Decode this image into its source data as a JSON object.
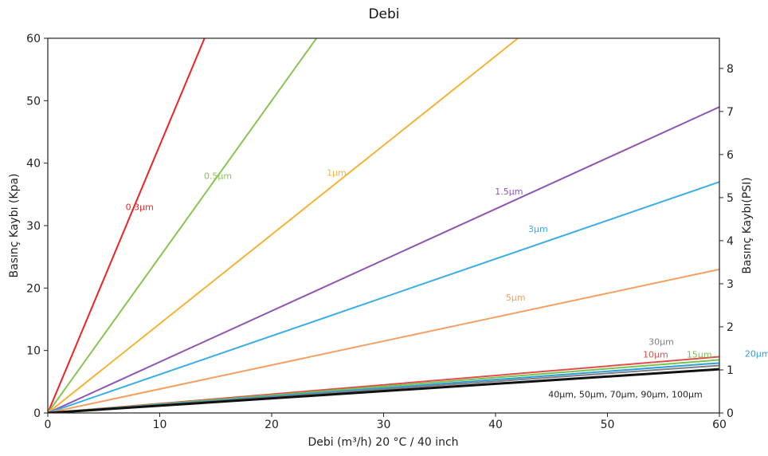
{
  "chart_data": {
    "type": "line",
    "title": "Debi",
    "xlabel": "Debi (m³/h) 20 °C / 40 inch",
    "ylabel": "Basınç Kaybı (Kpa)",
    "y2label": "Basınç Kaybı(PSI)",
    "xlim": [
      0,
      60
    ],
    "ylim": [
      0,
      60
    ],
    "y2lim": [
      0,
      8.7
    ],
    "grid": false,
    "xticks": [
      "0",
      "10",
      "20",
      "30",
      "40",
      "50",
      "60"
    ],
    "yticks": [
      "0",
      "10",
      "20",
      "30",
      "40",
      "50",
      "60"
    ],
    "y2ticks": [
      "0",
      "1",
      "2",
      "3",
      "4",
      "5",
      "6",
      "7",
      "8"
    ],
    "series": [
      {
        "name": "0.3µm",
        "color": "#ee2222",
        "x": [
          0,
          14
        ],
        "y": [
          0,
          60
        ],
        "label_at": [
          8.2,
          32.5
        ]
      },
      {
        "name": "0.5µm",
        "color": "#88c44e",
        "x": [
          0,
          24
        ],
        "y": [
          0,
          60
        ],
        "label_at": [
          15.2,
          37.5
        ]
      },
      {
        "name": "1µm",
        "color": "#f5b335",
        "x": [
          0,
          42
        ],
        "y": [
          0,
          60
        ],
        "label_at": [
          25.8,
          38
        ]
      },
      {
        "name": "1.5µm",
        "color": "#8e55b3",
        "x": [
          0,
          60
        ],
        "y": [
          0,
          49
        ],
        "label_at": [
          41.2,
          35
        ]
      },
      {
        "name": "3µm",
        "color": "#3aaee6",
        "x": [
          0,
          60
        ],
        "y": [
          0,
          37
        ],
        "label_at": [
          43.8,
          29
        ]
      },
      {
        "name": "5µm",
        "color": "#f4a062",
        "x": [
          0,
          60
        ],
        "y": [
          0,
          23
        ],
        "label_at": [
          41.8,
          18
        ]
      },
      {
        "name": "10µm",
        "color": "#e24c4c",
        "x": [
          0,
          60
        ],
        "y": [
          0,
          9
        ],
        "label_at": [
          54.3,
          8.9
        ]
      },
      {
        "name": "15µm",
        "color": "#78c34a",
        "x": [
          0,
          60
        ],
        "y": [
          0,
          8.5
        ],
        "label_at": [
          58.2,
          8.9
        ]
      },
      {
        "name": "20µm",
        "color": "#2e9fdc",
        "x": [
          0,
          60
        ],
        "y": [
          0,
          8
        ],
        "label_at": [
          63.4,
          9
        ]
      },
      {
        "name": "30µm",
        "color": "#808080",
        "x": [
          0,
          60
        ],
        "y": [
          0,
          7.6
        ],
        "label_at": [
          54.8,
          10.9
        ]
      },
      {
        "name": "40µm, 50µm, 70µm, 90µm, 100µm",
        "color": "#111111",
        "x": [
          0,
          60
        ],
        "y": [
          0,
          7
        ],
        "label_at": [
          51.6,
          2.5
        ]
      }
    ]
  }
}
